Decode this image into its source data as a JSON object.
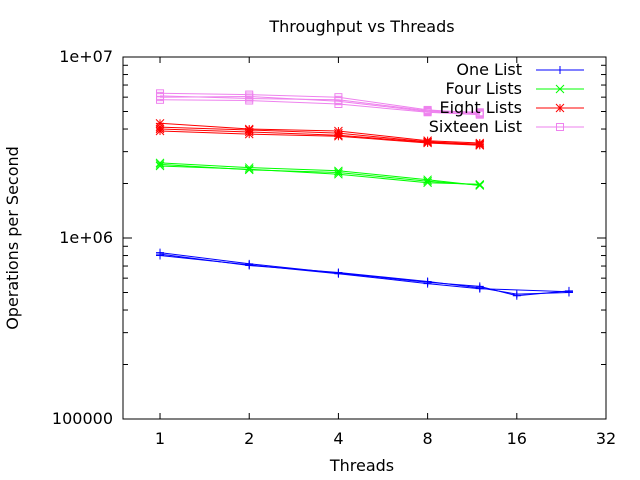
{
  "chart_data": {
    "type": "line",
    "title": "Throughput vs Threads",
    "xlabel": "Threads",
    "ylabel": "Operations per Second",
    "xscale": "log2",
    "yscale": "log10",
    "xlim": [
      0.75,
      32
    ],
    "ylim": [
      100000,
      10000000
    ],
    "x_ticks": [
      {
        "value": 1,
        "label": "1"
      },
      {
        "value": 2,
        "label": "2"
      },
      {
        "value": 4,
        "label": "4"
      },
      {
        "value": 8,
        "label": "8"
      },
      {
        "value": 16,
        "label": "16"
      },
      {
        "value": 32,
        "label": "32"
      }
    ],
    "y_ticks": [
      {
        "value": 100000,
        "label": "100000"
      },
      {
        "value": 1000000,
        "label": "1e+06"
      },
      {
        "value": 10000000,
        "label": "1e+07"
      }
    ],
    "grid": false,
    "legend_position": "top-right",
    "series": [
      {
        "name": "One List",
        "color": "#0000ff",
        "marker": "plus",
        "runs": [
          [
            [
              1,
              830000
            ],
            [
              2,
              720000
            ],
            [
              4,
              640000
            ],
            [
              8,
              570000
            ],
            [
              12,
              540000
            ],
            [
              16,
              480000
            ],
            [
              24,
              510000
            ]
          ],
          [
            [
              1,
              800000
            ],
            [
              2,
              710000
            ],
            [
              4,
              635000
            ],
            [
              8,
              560000
            ],
            [
              12,
              525000
            ],
            [
              24,
              505000
            ]
          ],
          [
            [
              1,
              815000
            ],
            [
              2,
              705000
            ],
            [
              4,
              645000
            ],
            [
              8,
              575000
            ],
            [
              12,
              530000
            ],
            [
              16,
              490000
            ],
            [
              24,
              500000
            ]
          ]
        ]
      },
      {
        "name": "Four Lists",
        "color": "#00ff00",
        "marker": "x",
        "runs": [
          [
            [
              1,
              2600000
            ],
            [
              2,
              2450000
            ],
            [
              4,
              2350000
            ],
            [
              8,
              2100000
            ],
            [
              12,
              1950000
            ]
          ],
          [
            [
              1,
              2500000
            ],
            [
              2,
              2400000
            ],
            [
              4,
              2250000
            ],
            [
              8,
              2020000
            ],
            [
              12,
              1980000
            ]
          ],
          [
            [
              1,
              2550000
            ],
            [
              2,
              2380000
            ],
            [
              4,
              2300000
            ],
            [
              8,
              2060000
            ],
            [
              12,
              1960000
            ]
          ]
        ]
      },
      {
        "name": "Eight Lists",
        "color": "#ff0000",
        "marker": "star",
        "runs": [
          [
            [
              1,
              4300000
            ],
            [
              2,
              4000000
            ],
            [
              4,
              3900000
            ],
            [
              8,
              3450000
            ],
            [
              12,
              3350000
            ]
          ],
          [
            [
              1,
              4100000
            ],
            [
              2,
              3950000
            ],
            [
              4,
              3800000
            ],
            [
              8,
              3400000
            ],
            [
              12,
              3300000
            ]
          ],
          [
            [
              1,
              3900000
            ],
            [
              2,
              3750000
            ],
            [
              4,
              3650000
            ],
            [
              8,
              3350000
            ],
            [
              12,
              3250000
            ]
          ],
          [
            [
              1,
              4000000
            ],
            [
              2,
              3850000
            ],
            [
              4,
              3700000
            ],
            [
              8,
              3380000
            ],
            [
              12,
              3280000
            ]
          ]
        ]
      },
      {
        "name": "Sixteen List",
        "color": "#ee82ee",
        "marker": "square",
        "runs": [
          [
            [
              1,
              6300000
            ],
            [
              2,
              6200000
            ],
            [
              4,
              6000000
            ],
            [
              8,
              5100000
            ],
            [
              12,
              4900000
            ]
          ],
          [
            [
              1,
              6000000
            ],
            [
              2,
              6050000
            ],
            [
              4,
              5700000
            ],
            [
              8,
              5000000
            ],
            [
              12,
              4850000
            ]
          ],
          [
            [
              1,
              5800000
            ],
            [
              2,
              5750000
            ],
            [
              4,
              5500000
            ],
            [
              8,
              4950000
            ],
            [
              12,
              4800000
            ]
          ],
          [
            [
              1,
              6100000
            ],
            [
              2,
              5900000
            ],
            [
              4,
              5800000
            ],
            [
              8,
              5050000
            ],
            [
              12,
              4950000
            ]
          ]
        ]
      }
    ]
  }
}
